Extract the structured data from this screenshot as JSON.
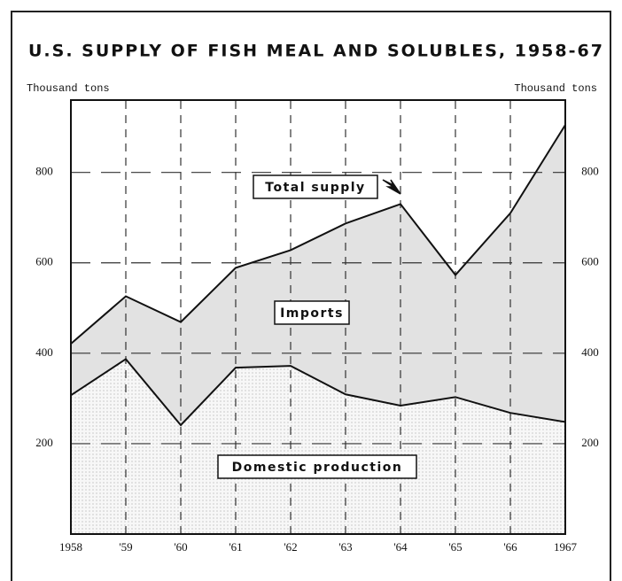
{
  "chart_data": {
    "type": "stacked_area",
    "title": "U.S. SUPPLY OF FISH MEAL AND SOLUBLES, 1958-67",
    "y_label": "Thousand tons",
    "y2_label": "Thousand tons",
    "categories": [
      "1958",
      "'59",
      "'60",
      "'61",
      "'62",
      "'63",
      "'64",
      "'65",
      "'66",
      "1967"
    ],
    "series": [
      {
        "name": "Domestic production",
        "color": "#f4f4f4",
        "values": [
          307,
          387,
          241,
          368,
          372,
          309,
          284,
          303,
          268,
          248
        ]
      },
      {
        "name": "Imports",
        "color": "#e2e2e2",
        "values": [
          114,
          139,
          228,
          221,
          256,
          378,
          446,
          270,
          442,
          657
        ]
      }
    ],
    "annotations": [
      "Total supply"
    ],
    "ylim": [
      0,
      960
    ],
    "yticks": [
      200,
      400,
      600,
      800
    ],
    "grid": true
  }
}
